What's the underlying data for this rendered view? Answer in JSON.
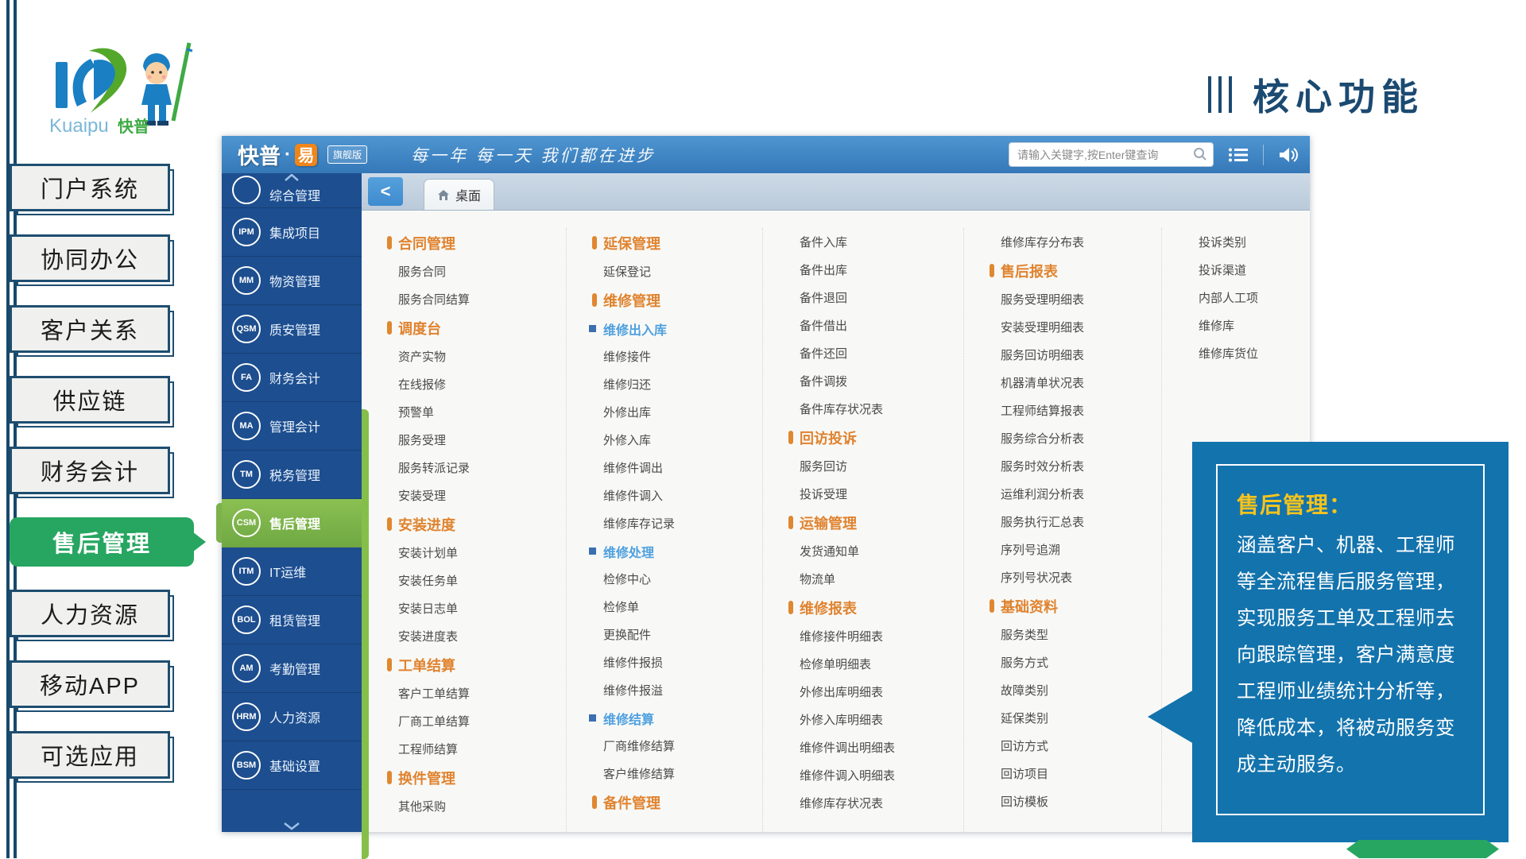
{
  "page": {
    "title": "核心功能"
  },
  "logo": {
    "brand_en": "Kuaipu",
    "brand_cn": "快普"
  },
  "left_nav": {
    "items": [
      {
        "label": "门户系统",
        "active": false
      },
      {
        "label": "协同办公",
        "active": false
      },
      {
        "label": "客户关系",
        "active": false
      },
      {
        "label": "供应链",
        "active": false
      },
      {
        "label": "财务会计",
        "active": false
      },
      {
        "label": "售后管理",
        "active": true
      },
      {
        "label": "人力资源",
        "active": false
      },
      {
        "label": "移动APP",
        "active": false
      },
      {
        "label": "可选应用",
        "active": false
      }
    ]
  },
  "app": {
    "header": {
      "brand_cn": "快普",
      "brand_dot": "·",
      "brand_suffix": "易",
      "edition": "旗舰版",
      "slogan": "每一年 每一天 我们都在进步",
      "search_placeholder": "请输入关键字,按Enter键查询"
    },
    "tabs": {
      "back": "<",
      "desktop": "桌面"
    },
    "sidebar": {
      "items": [
        {
          "abbr": "",
          "label": "综合管理",
          "active": false
        },
        {
          "abbr": "IPM",
          "label": "集成项目",
          "active": false
        },
        {
          "abbr": "MM",
          "label": "物资管理",
          "active": false
        },
        {
          "abbr": "QSM",
          "label": "质安管理",
          "active": false
        },
        {
          "abbr": "FA",
          "label": "财务会计",
          "active": false
        },
        {
          "abbr": "MA",
          "label": "管理会计",
          "active": false
        },
        {
          "abbr": "TM",
          "label": "税务管理",
          "active": false
        },
        {
          "abbr": "CSM",
          "label": "售后管理",
          "active": true
        },
        {
          "abbr": "ITM",
          "label": "IT运维",
          "active": false
        },
        {
          "abbr": "BOL",
          "label": "租赁管理",
          "active": false
        },
        {
          "abbr": "AM",
          "label": "考勤管理",
          "active": false
        },
        {
          "abbr": "HRM",
          "label": "人力资源",
          "active": false
        },
        {
          "abbr": "BSM",
          "label": "基础设置",
          "active": false
        }
      ]
    },
    "menu_columns": [
      {
        "items": [
          {
            "t": "h",
            "label": "合同管理"
          },
          {
            "t": "i",
            "label": "服务合同"
          },
          {
            "t": "i",
            "label": "服务合同结算"
          },
          {
            "t": "h",
            "label": "调度台"
          },
          {
            "t": "i",
            "label": "资产实物"
          },
          {
            "t": "i",
            "label": "在线报修"
          },
          {
            "t": "i",
            "label": "预警单"
          },
          {
            "t": "i",
            "label": "服务受理"
          },
          {
            "t": "i",
            "label": "服务转派记录"
          },
          {
            "t": "i",
            "label": "安装受理"
          },
          {
            "t": "h",
            "label": "安装进度"
          },
          {
            "t": "i",
            "label": "安装计划单"
          },
          {
            "t": "i",
            "label": "安装任务单"
          },
          {
            "t": "i",
            "label": "安装日志单"
          },
          {
            "t": "i",
            "label": "安装进度表"
          },
          {
            "t": "h",
            "label": "工单结算"
          },
          {
            "t": "i",
            "label": "客户工单结算"
          },
          {
            "t": "i",
            "label": "厂商工单结算"
          },
          {
            "t": "i",
            "label": "工程师结算"
          },
          {
            "t": "h",
            "label": "换件管理"
          },
          {
            "t": "i",
            "label": "其他采购"
          }
        ]
      },
      {
        "items": [
          {
            "t": "h",
            "label": "延保管理"
          },
          {
            "t": "i",
            "label": "延保登记"
          },
          {
            "t": "h",
            "label": "维修管理"
          },
          {
            "t": "s",
            "label": "维修出入库"
          },
          {
            "t": "i",
            "label": "维修接件"
          },
          {
            "t": "i",
            "label": "维修归还"
          },
          {
            "t": "i",
            "label": "外修出库"
          },
          {
            "t": "i",
            "label": "外修入库"
          },
          {
            "t": "i",
            "label": "维修件调出"
          },
          {
            "t": "i",
            "label": "维修件调入"
          },
          {
            "t": "i",
            "label": "维修库存记录"
          },
          {
            "t": "s",
            "label": "维修处理"
          },
          {
            "t": "i",
            "label": "检修中心"
          },
          {
            "t": "i",
            "label": "检修单"
          },
          {
            "t": "i",
            "label": "更换配件"
          },
          {
            "t": "i",
            "label": "维修件报损"
          },
          {
            "t": "i",
            "label": "维修件报溢"
          },
          {
            "t": "s",
            "label": "维修结算"
          },
          {
            "t": "i",
            "label": "厂商维修结算"
          },
          {
            "t": "i",
            "label": "客户维修结算"
          },
          {
            "t": "h",
            "label": "备件管理"
          }
        ]
      },
      {
        "items": [
          {
            "t": "i",
            "label": "备件入库"
          },
          {
            "t": "i",
            "label": "备件出库"
          },
          {
            "t": "i",
            "label": "备件退回"
          },
          {
            "t": "i",
            "label": "备件借出"
          },
          {
            "t": "i",
            "label": "备件还回"
          },
          {
            "t": "i",
            "label": "备件调拨"
          },
          {
            "t": "i",
            "label": "备件库存状况表"
          },
          {
            "t": "h",
            "label": "回访投诉"
          },
          {
            "t": "i",
            "label": "服务回访"
          },
          {
            "t": "i",
            "label": "投诉受理"
          },
          {
            "t": "h",
            "label": "运输管理"
          },
          {
            "t": "i",
            "label": "发货通知单"
          },
          {
            "t": "i",
            "label": "物流单"
          },
          {
            "t": "h",
            "label": "维修报表"
          },
          {
            "t": "i",
            "label": "维修接件明细表"
          },
          {
            "t": "i",
            "label": "检修单明细表"
          },
          {
            "t": "i",
            "label": "外修出库明细表"
          },
          {
            "t": "i",
            "label": "外修入库明细表"
          },
          {
            "t": "i",
            "label": "维修件调出明细表"
          },
          {
            "t": "i",
            "label": "维修件调入明细表"
          },
          {
            "t": "i",
            "label": "维修库存状况表"
          }
        ]
      },
      {
        "items": [
          {
            "t": "i",
            "label": "维修库存分布表"
          },
          {
            "t": "h",
            "label": "售后报表"
          },
          {
            "t": "i",
            "label": "服务受理明细表"
          },
          {
            "t": "i",
            "label": "安装受理明细表"
          },
          {
            "t": "i",
            "label": "服务回访明细表"
          },
          {
            "t": "i",
            "label": "机器清单状况表"
          },
          {
            "t": "i",
            "label": "工程师结算报表"
          },
          {
            "t": "i",
            "label": "服务综合分析表"
          },
          {
            "t": "i",
            "label": "服务时效分析表"
          },
          {
            "t": "i",
            "label": "运维利润分析表"
          },
          {
            "t": "i",
            "label": "服务执行汇总表"
          },
          {
            "t": "i",
            "label": "序列号追溯"
          },
          {
            "t": "i",
            "label": "序列号状况表"
          },
          {
            "t": "h",
            "label": "基础资料"
          },
          {
            "t": "i",
            "label": "服务类型"
          },
          {
            "t": "i",
            "label": "服务方式"
          },
          {
            "t": "i",
            "label": "故障类别"
          },
          {
            "t": "i",
            "label": "延保类别"
          },
          {
            "t": "i",
            "label": "回访方式"
          },
          {
            "t": "i",
            "label": "回访项目"
          },
          {
            "t": "i",
            "label": "回访模板"
          }
        ]
      },
      {
        "items": [
          {
            "t": "i",
            "label": "投诉类别"
          },
          {
            "t": "i",
            "label": "投诉渠道"
          },
          {
            "t": "i",
            "label": "内部人工项"
          },
          {
            "t": "i",
            "label": "维修库"
          },
          {
            "t": "i",
            "label": "维修库货位"
          }
        ]
      }
    ]
  },
  "callout": {
    "title": "售后管理：",
    "body": "涵盖客户、机器、工程师等全流程售后服务管理，实现服务工单及工程师去向跟踪管理，客户满意度工程师业绩统计分析等，降低成本，将被动服务变成主动服务。"
  },
  "colors": {
    "accent_orange": "#E0832F",
    "accent_blue": "#4FA0DE",
    "header_blue": "#3A7FC1",
    "sidebar_navy": "#1D4E8F",
    "active_green": "#7CB14C",
    "nav_active_green": "#27A661",
    "callout_blue": "#1373AD",
    "callout_title_yellow": "#F5C31D",
    "title_navy": "#1B4A71"
  }
}
